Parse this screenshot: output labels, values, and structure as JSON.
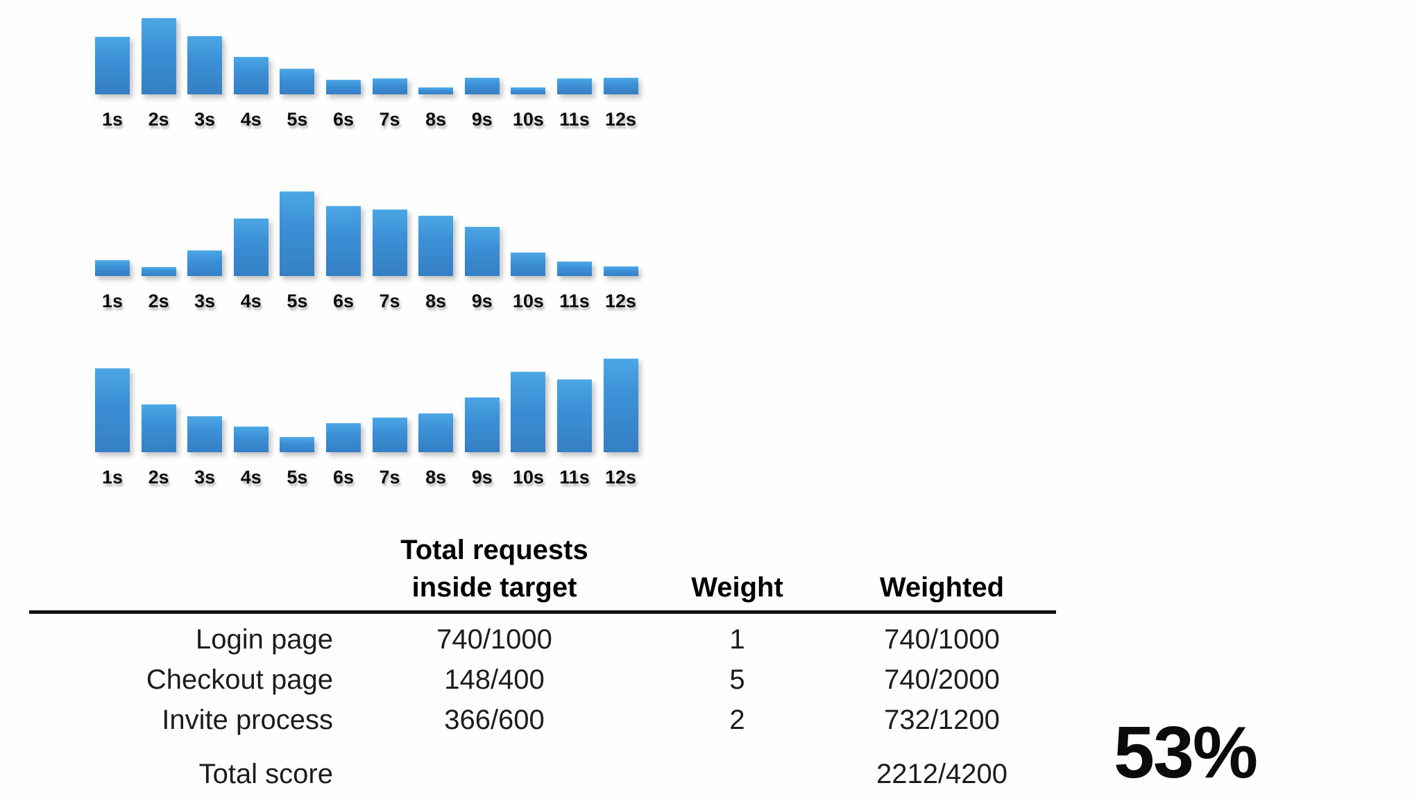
{
  "slide": {
    "background": "#fefefe",
    "bar_color_top": "#4ba6e4",
    "bar_color_bottom": "#357fc5",
    "label_color": "#0d0d0d"
  },
  "chart_data": [
    {
      "type": "bar",
      "title": "",
      "categories": [
        "1s",
        "2s",
        "3s",
        "4s",
        "5s",
        "6s",
        "7s",
        "8s",
        "9s",
        "10s",
        "11s",
        "12s"
      ],
      "values": [
        82,
        109,
        83,
        53,
        36,
        20,
        22,
        9,
        23,
        9,
        22,
        23
      ],
      "xlabel": "",
      "ylabel": "",
      "ylim": [
        0,
        140
      ],
      "grid": false,
      "legend": false,
      "note": "Response-time histogram 1 (Login page); heights are relative units read from pixels, no y-axis shown"
    },
    {
      "type": "bar",
      "title": "",
      "categories": [
        "1s",
        "2s",
        "3s",
        "4s",
        "5s",
        "6s",
        "7s",
        "8s",
        "9s",
        "10s",
        "11s",
        "12s"
      ],
      "values": [
        22,
        12,
        36,
        82,
        121,
        100,
        95,
        86,
        70,
        33,
        20,
        13
      ],
      "xlabel": "",
      "ylabel": "",
      "ylim": [
        0,
        140
      ],
      "grid": false,
      "legend": false,
      "note": "Response-time histogram 2 (Checkout page); heights are relative units read from pixels, no y-axis shown"
    },
    {
      "type": "bar",
      "title": "",
      "categories": [
        "1s",
        "2s",
        "3s",
        "4s",
        "5s",
        "6s",
        "7s",
        "8s",
        "9s",
        "10s",
        "11s",
        "12s"
      ],
      "values": [
        120,
        68,
        51,
        36,
        21,
        41,
        49,
        55,
        78,
        115,
        104,
        134
      ],
      "xlabel": "",
      "ylabel": "",
      "ylim": [
        0,
        140
      ],
      "grid": false,
      "legend": false,
      "note": "Response-time histogram 3 (Invite process); heights are relative units read from pixels, no y-axis shown"
    },
    {
      "type": "table",
      "headers": [
        "",
        "Total requests inside target",
        "Weight",
        "Weighted"
      ],
      "rows": [
        [
          "Login page",
          "740/1000",
          "1",
          "740/1000"
        ],
        [
          "Checkout page",
          "148/400",
          "5",
          "740/2000"
        ],
        [
          "Invite process",
          "366/600",
          "2",
          "732/1200"
        ],
        [
          "Total score",
          "",
          "",
          "2212/4200"
        ]
      ]
    }
  ],
  "table": {
    "header_requests_line1": "Total requests",
    "header_requests_line2": "inside target",
    "header_weight": "Weight",
    "header_weighted": "Weighted",
    "rows": [
      {
        "label": "Login page",
        "requests": "740/1000",
        "weight": "1",
        "weighted": "740/1000"
      },
      {
        "label": "Checkout page",
        "requests": "148/400",
        "weight": "5",
        "weighted": "740/2000"
      },
      {
        "label": "Invite process",
        "requests": "366/600",
        "weight": "2",
        "weighted": "732/1200"
      }
    ],
    "total": {
      "label": "Total score",
      "weighted": "2212/4200"
    }
  },
  "score": {
    "value": "53%"
  }
}
